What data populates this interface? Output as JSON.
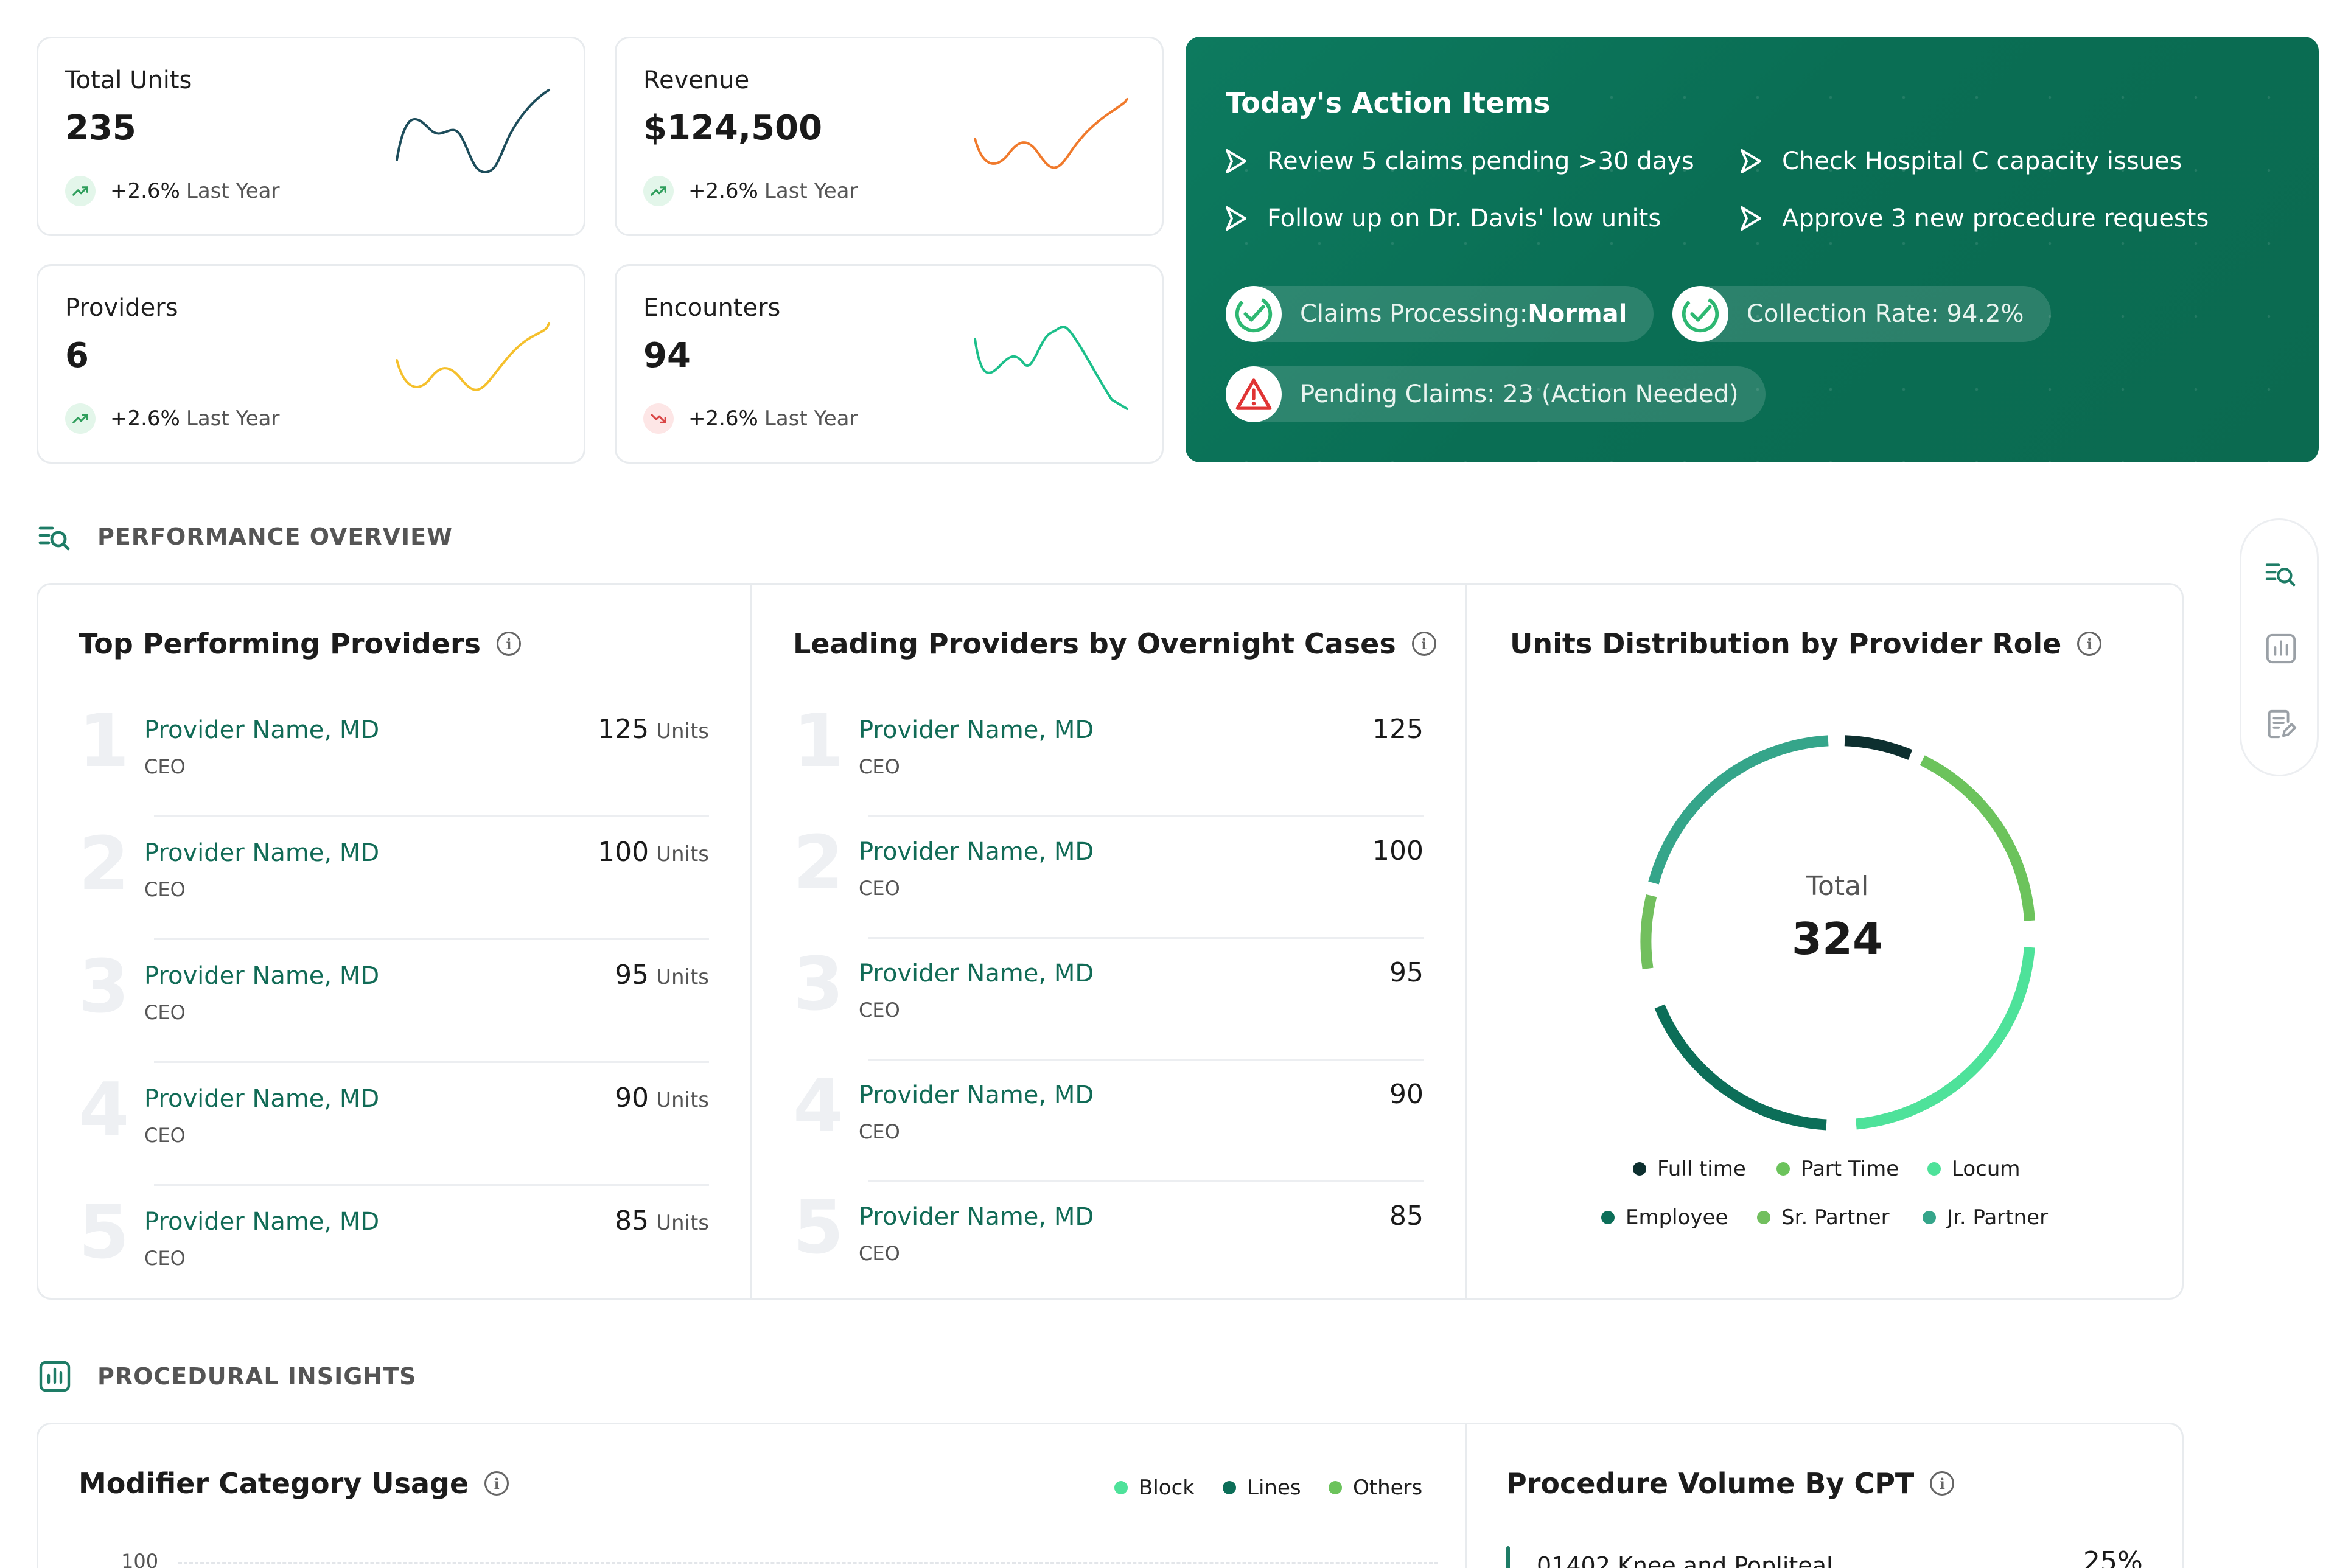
{
  "stats": [
    {
      "title": "Total Units",
      "value": "235",
      "trend_pct": "+2.6%",
      "trend_text": "Last Year",
      "trend_dir": "up",
      "spark_color": "#1d4d5b"
    },
    {
      "title": "Revenue",
      "value": "$124,500",
      "trend_pct": "+2.6%",
      "trend_text": "Last Year",
      "trend_dir": "up",
      "spark_color": "#f07a2c"
    },
    {
      "title": "Providers",
      "value": "6",
      "trend_pct": "+2.6%",
      "trend_text": "Last Year",
      "trend_dir": "up",
      "spark_color": "#f5c02c"
    },
    {
      "title": "Encounters",
      "value": "94",
      "trend_pct": "+2.6%",
      "trend_text": "Last Year",
      "trend_dir": "down",
      "spark_color": "#1cbf8a"
    }
  ],
  "action_items": {
    "title": "Today's Action Items",
    "items": [
      "Review 5 claims pending >30 days",
      "Check Hospital C capacity issues",
      "Follow up on Dr. Davis' low units",
      "Approve 3 new procedure requests"
    ],
    "status": [
      {
        "label": "Claims Processing: ",
        "value": "Normal",
        "icon": "check-circle-icon"
      },
      {
        "label": "Collection Rate: 94.2%",
        "value": "",
        "icon": "check-circle-icon"
      },
      {
        "label": "Pending Claims: 23 (Action Needed)",
        "value": "",
        "icon": "warning-icon"
      }
    ]
  },
  "sections": {
    "performance": "PERFORMANCE OVERVIEW",
    "procedural": "PROCEDURAL INSIGHTS"
  },
  "top_providers": {
    "title": "Top Performing Providers",
    "unit_label": "Units",
    "rows": [
      {
        "rank": "1",
        "name": "Provider Name, MD",
        "role": "CEO",
        "value": "125"
      },
      {
        "rank": "2",
        "name": "Provider Name, MD",
        "role": "CEO",
        "value": "100"
      },
      {
        "rank": "3",
        "name": "Provider Name, MD",
        "role": "CEO",
        "value": "95"
      },
      {
        "rank": "4",
        "name": "Provider Name, MD",
        "role": "CEO",
        "value": "90"
      },
      {
        "rank": "5",
        "name": "Provider Name, MD",
        "role": "CEO",
        "value": "85"
      }
    ]
  },
  "overnight_providers": {
    "title": "Leading Providers by Overnight Cases",
    "rows": [
      {
        "rank": "1",
        "name": "Provider Name, MD",
        "role": "CEO",
        "value": "125"
      },
      {
        "rank": "2",
        "name": "Provider Name, MD",
        "role": "CEO",
        "value": "100"
      },
      {
        "rank": "3",
        "name": "Provider Name, MD",
        "role": "CEO",
        "value": "95"
      },
      {
        "rank": "4",
        "name": "Provider Name, MD",
        "role": "CEO",
        "value": "90"
      },
      {
        "rank": "5",
        "name": "Provider Name, MD",
        "role": "CEO",
        "value": "85"
      }
    ]
  },
  "units_distribution": {
    "title": "Units Distribution by Provider Role",
    "center_label": "Total",
    "center_value": "324",
    "legend": [
      {
        "name": "Full time",
        "color": "#0d2f2f"
      },
      {
        "name": "Part Time",
        "color": "#6cc35c"
      },
      {
        "name": "Locum",
        "color": "#4ee29a"
      },
      {
        "name": "Employee",
        "color": "#0c6e58"
      },
      {
        "name": "Sr. Partner",
        "color": "#72bf5e"
      },
      {
        "name": "Jr. Partner",
        "color": "#35a58a"
      }
    ]
  },
  "modifier_usage": {
    "title": "Modifier Category Usage",
    "legend": [
      {
        "name": "Block",
        "color": "#4ee29a"
      },
      {
        "name": "Lines",
        "color": "#0c6e58"
      },
      {
        "name": "Others",
        "color": "#6cc35c"
      }
    ],
    "y_tick_top": "100"
  },
  "procedure_cpt": {
    "title": "Procedure Volume By CPT",
    "first_row_label": "01402 Knee and Popliteal",
    "first_row_value": "25%"
  },
  "rail_icons": [
    "list-search-icon",
    "chart-icon",
    "document-edit-icon"
  ]
}
